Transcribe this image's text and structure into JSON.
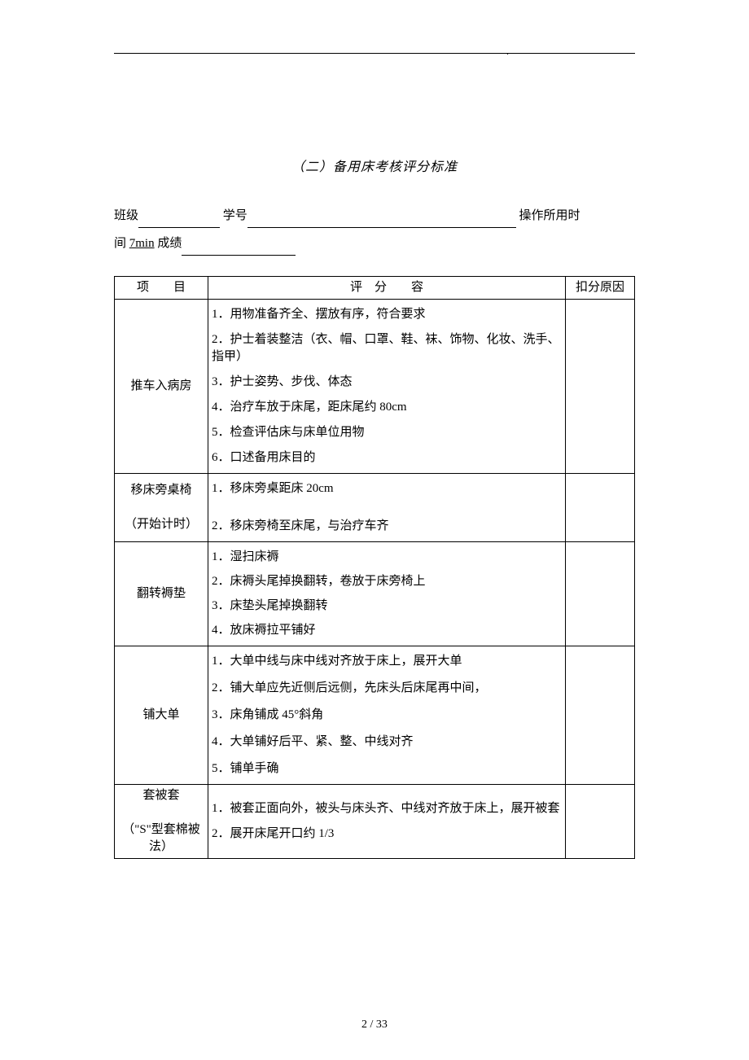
{
  "title": "（二）备用床考核评分标准",
  "form": {
    "class_label": "班级",
    "id_label": "学号",
    "time_label": "操作所用时",
    "time_line2_label": "间",
    "time_value": "7min",
    "score_label": "成绩"
  },
  "table": {
    "header_item": "项　　目",
    "header_content": "评　分　　容",
    "header_reason": "扣分原因",
    "rows": [
      {
        "item": "推车入病房",
        "lines": [
          "1．用物准备齐全、摆放有序，符合要求",
          "2．护士着装整洁（衣、帽、口罩、鞋、袜、饰物、化妆、洗手、指甲）",
          "3．护士姿势、步伐、体态",
          "4．治疗车放于床尾，距床尾约 80cm",
          "5．检查评估床与床单位用物",
          "6．口述备用床目的"
        ]
      },
      {
        "item": "移床旁桌椅\n\n（开始计时）",
        "lines": [
          "1．移床旁桌距床 20cm",
          "",
          "2．移床旁椅至床尾，与治疗车齐"
        ]
      },
      {
        "item": "翻转褥垫",
        "lines": [
          "1．湿扫床褥",
          "2．床褥头尾掉换翻转，卷放于床旁椅上",
          "3．床垫头尾掉换翻转",
          "4．放床褥拉平铺好"
        ]
      },
      {
        "item": "铺大单",
        "lines": [
          "1．大单中线与床中线对齐放于床上，展开大单",
          "2．铺大单应先近侧后远侧，先床头后床尾再中间，",
          "3．床角铺成 45°斜角",
          "4．大单铺好后平、紧、整、中线对齐",
          "5．铺单手确"
        ]
      },
      {
        "item": "套被套\n\n（\"S\"型套棉被法）",
        "lines": [
          "1．被套正面向外，被头与床头齐、中线对齐放于床上，展开被套",
          "2．展开床尾开口约 1/3"
        ]
      }
    ]
  },
  "page_number": "2 / 33"
}
